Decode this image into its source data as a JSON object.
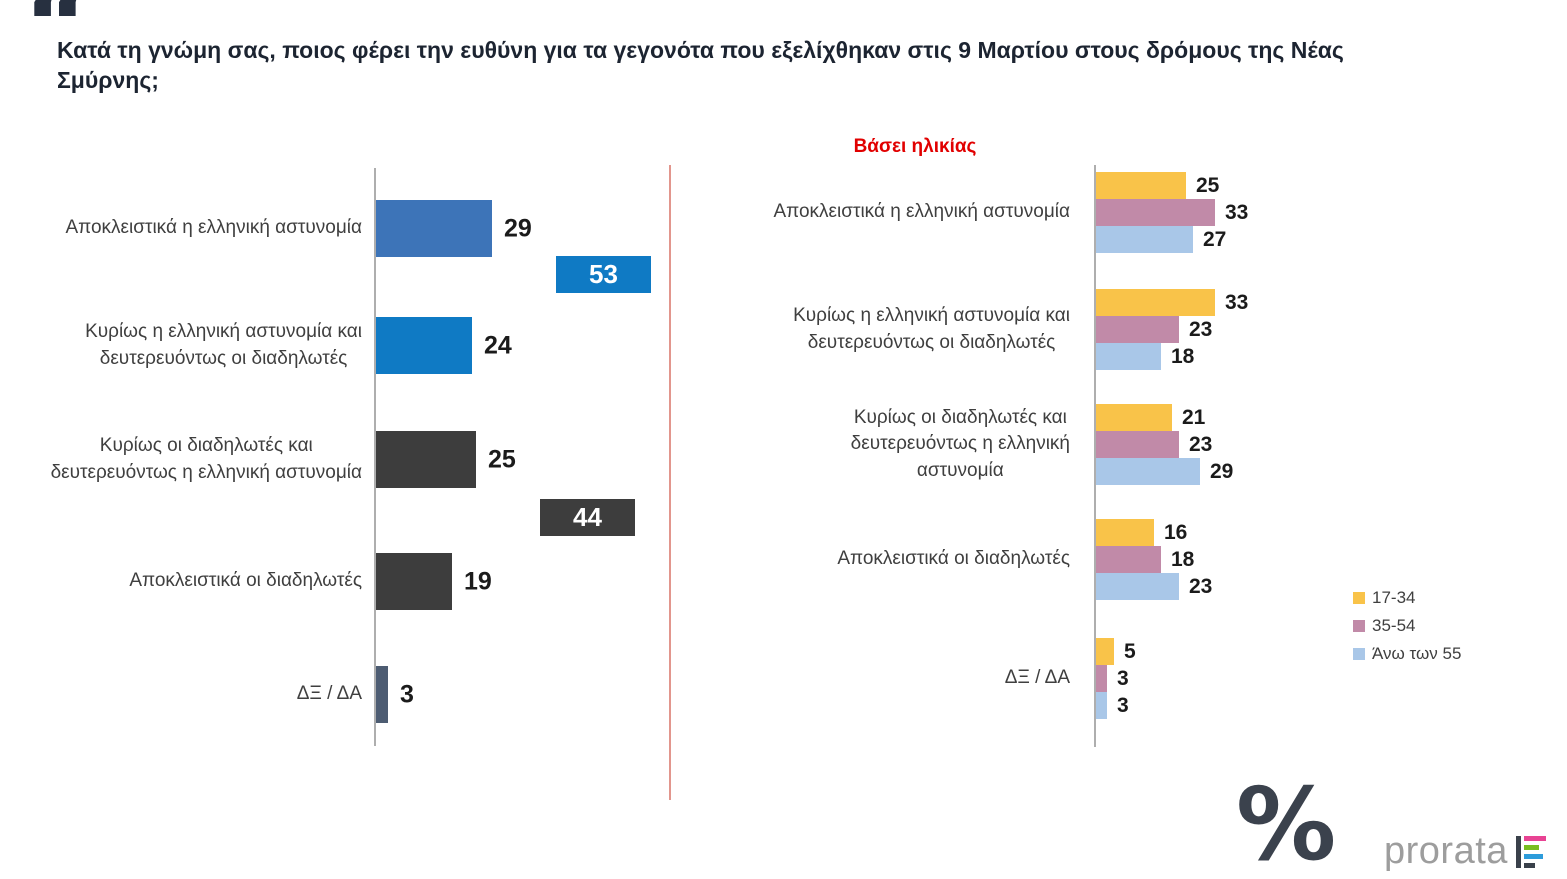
{
  "quote_glyph": "“",
  "question": "Κατά τη γνώμη σας, ποιος φέρει την ευθύνη για τα γεγονότα που εξελίχθηκαν στις 9 Μαρτίου στους δρόμους της Νέας Σμύρνης;",
  "brand": {
    "logo_text": "prorata",
    "percent_glyph": "%",
    "icon_colors": [
      "#e84393",
      "#78be20",
      "#2d9cdb",
      "#3a414b"
    ]
  },
  "chart_data": [
    {
      "type": "bar",
      "orientation": "horizontal",
      "title": "",
      "categories": [
        "Αποκλειστικά η ελληνική αστυνομία",
        "Κυρίως η ελληνική αστυνομία και\nδευτερευόντως οι διαδηλωτές",
        "Κυρίως οι διαδηλωτές και\nδευτερευόντως η ελληνική αστυνομία",
        "Αποκλειστικά οι διαδηλωτές",
        "ΔΞ / ΔΑ"
      ],
      "values": [
        29,
        24,
        25,
        19,
        3
      ],
      "bar_colors": [
        "#3d74b8",
        "#0f7ac4",
        "#3d3d3d",
        "#3d3d3d",
        "#4d5c72"
      ],
      "combined_labels": [
        {
          "value": 53,
          "color": "#0f7ac4"
        },
        {
          "value": 44,
          "color": "#3d3d3d"
        }
      ],
      "xlim": [
        0,
        70
      ],
      "grid": false,
      "value_labels": true,
      "legend_position": "none"
    },
    {
      "type": "bar",
      "orientation": "horizontal",
      "title": "Βάσει ηλικίας",
      "title_color": "#e10000",
      "categories": [
        "Αποκλειστικά η ελληνική αστυνομία",
        "Κυρίως η ελληνική αστυνομία και\nδευτερευόντως οι διαδηλωτές",
        "Κυρίως οι διαδηλωτές και\nδευτερευόντως η ελληνική\nαστυνομία",
        "Αποκλειστικά οι διαδηλωτές",
        "ΔΞ / ΔΑ"
      ],
      "series": [
        {
          "name": "17-34",
          "color": "#f9c349",
          "values": [
            25,
            33,
            21,
            16,
            5
          ]
        },
        {
          "name": "35-54",
          "color": "#c18aa8",
          "values": [
            33,
            23,
            23,
            18,
            3
          ]
        },
        {
          "name": "Άνω των 55",
          "color": "#a9c7e8",
          "values": [
            27,
            18,
            29,
            23,
            3
          ]
        }
      ],
      "xlim": [
        0,
        40
      ],
      "grid": false,
      "value_labels": true,
      "legend_position": "right"
    }
  ]
}
